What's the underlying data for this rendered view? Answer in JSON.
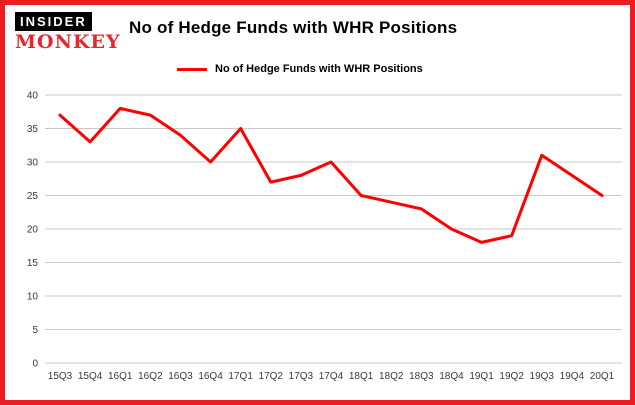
{
  "brand": {
    "line1": "INSIDER",
    "line2": "MONKEY"
  },
  "title": "No of Hedge Funds with WHR Positions",
  "legend": "No of Hedge Funds with WHR Positions",
  "colors": {
    "line": "#fe0000",
    "frame_border": "#ec1c24",
    "grid": "#c8c8c8",
    "text": "#3a3a3a",
    "logo_red": "#e8262d",
    "logo_bg": "#000000"
  },
  "chart_data": {
    "type": "line",
    "title": "No of Hedge Funds with WHR Positions",
    "categories": [
      "15Q3",
      "15Q4",
      "16Q1",
      "16Q2",
      "16Q3",
      "16Q4",
      "17Q1",
      "17Q2",
      "17Q3",
      "17Q4",
      "18Q1",
      "18Q2",
      "18Q3",
      "18Q4",
      "19Q1",
      "19Q2",
      "19Q3",
      "19Q4",
      "20Q1"
    ],
    "series": [
      {
        "name": "No of Hedge Funds with WHR Positions",
        "values": [
          37,
          33,
          38,
          37,
          34,
          30,
          35,
          27,
          28,
          30,
          25,
          24,
          23,
          20,
          18,
          19,
          31,
          28,
          25
        ]
      }
    ],
    "xlabel": "",
    "ylabel": "",
    "ylim": [
      0,
      40
    ],
    "yticks": [
      0,
      5,
      10,
      15,
      20,
      25,
      30,
      35,
      40
    ],
    "grid": true,
    "legend_position": "top-left"
  }
}
